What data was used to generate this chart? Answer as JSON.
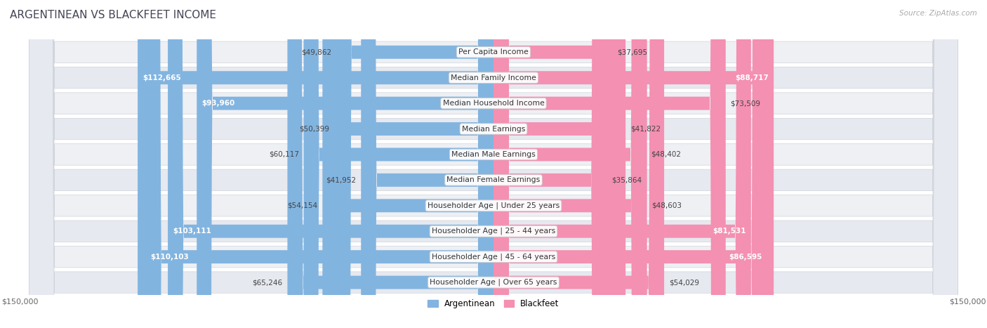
{
  "title": "Argentinean vs Blackfeet Income",
  "source": "Source: ZipAtlas.com",
  "categories": [
    "Per Capita Income",
    "Median Family Income",
    "Median Household Income",
    "Median Earnings",
    "Median Male Earnings",
    "Median Female Earnings",
    "Householder Age | Under 25 years",
    "Householder Age | 25 - 44 years",
    "Householder Age | 45 - 64 years",
    "Householder Age | Over 65 years"
  ],
  "argentinean": [
    49862,
    112665,
    93960,
    50399,
    60117,
    41952,
    54154,
    103111,
    110103,
    65246
  ],
  "blackfeet": [
    37695,
    88717,
    73509,
    41822,
    48402,
    35864,
    48603,
    81531,
    86595,
    54029
  ],
  "max_value": 150000,
  "argentinean_color": "#82b4e0",
  "blackfeet_color": "#f490b1",
  "row_bg_light": "#f0f2f5",
  "row_bg_dark": "#e4e8ee",
  "figsize": [
    14.06,
    4.67
  ],
  "dpi": 100
}
